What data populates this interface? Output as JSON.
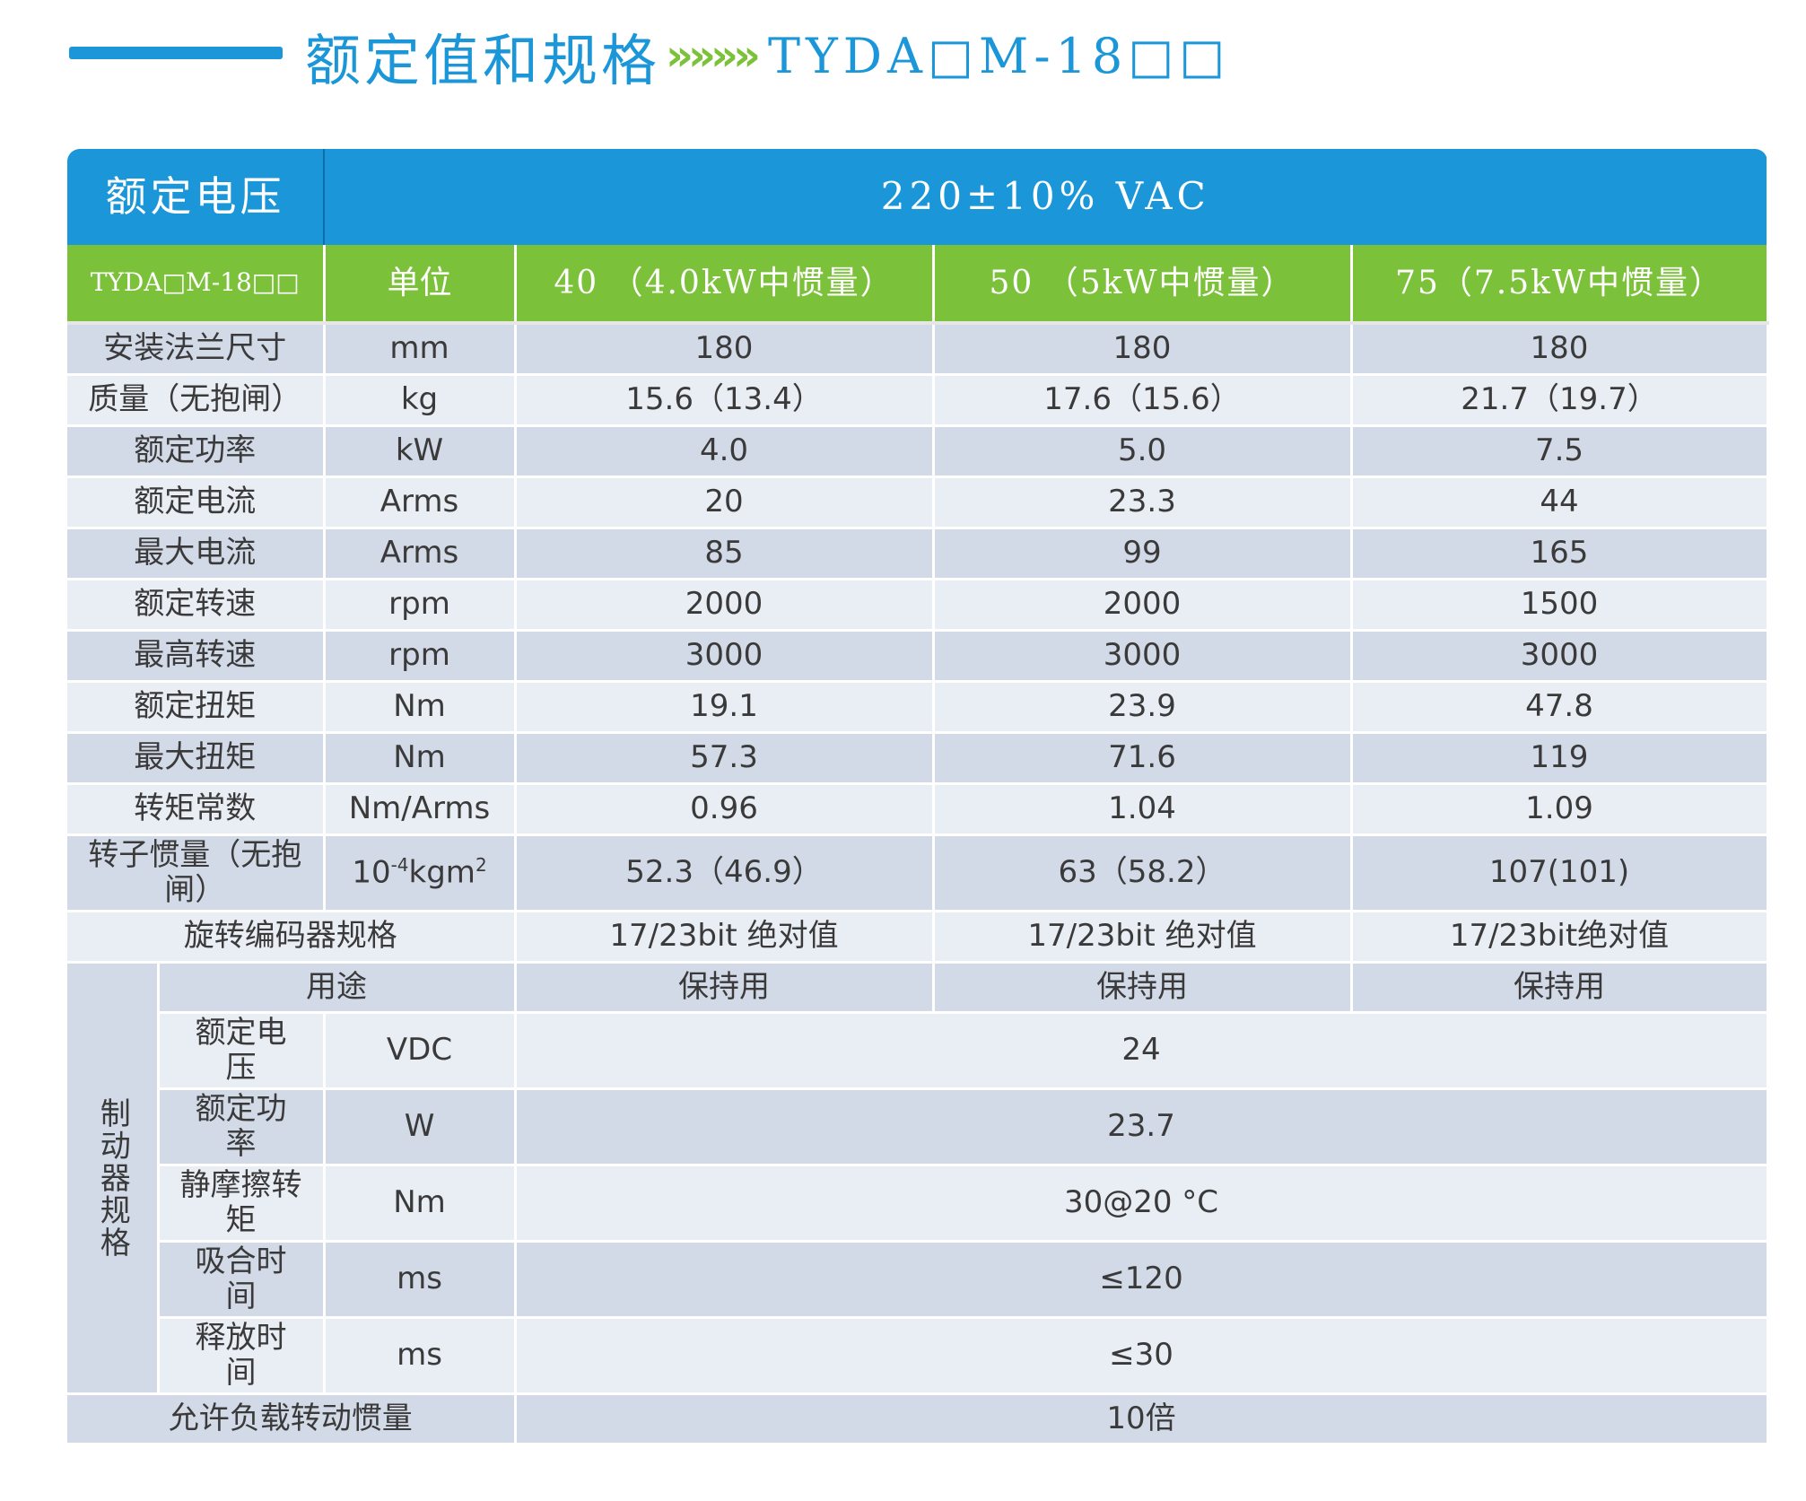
{
  "header": {
    "title_cn": "额定值和规格",
    "arrows": "»»»»",
    "model": "TYDA□M-18□□"
  },
  "voltage": {
    "label": "额定电压",
    "value": "220±10% VAC"
  },
  "model_row": {
    "model": "TYDA□M-18□□",
    "unit": "单位",
    "col1": "40 （4.0kW中惯量）",
    "col2": "50 （5kW中惯量）",
    "col3": "75（7.5kW中惯量）"
  },
  "rows": [
    {
      "label": "安装法兰尺寸",
      "unit": "mm",
      "v1": "180",
      "v2": "180",
      "v3": "180"
    },
    {
      "label": "质量（无抱闸）",
      "unit": "kg",
      "v1": "15.6（13.4）",
      "v2": "17.6（15.6）",
      "v3": "21.7（19.7）"
    },
    {
      "label": "额定功率",
      "unit": "kW",
      "v1": "4.0",
      "v2": "5.0",
      "v3": "7.5"
    },
    {
      "label": "额定电流",
      "unit": "Arms",
      "v1": "20",
      "v2": "23.3",
      "v3": "44"
    },
    {
      "label": "最大电流",
      "unit": "Arms",
      "v1": "85",
      "v2": "99",
      "v3": "165"
    },
    {
      "label": "额定转速",
      "unit": "rpm",
      "v1": "2000",
      "v2": "2000",
      "v3": "1500"
    },
    {
      "label": "最高转速",
      "unit": "rpm",
      "v1": "3000",
      "v2": "3000",
      "v3": "3000"
    },
    {
      "label": "额定扭矩",
      "unit": "Nm",
      "v1": "19.1",
      "v2": "23.9",
      "v3": "47.8"
    },
    {
      "label": "最大扭矩",
      "unit": "Nm",
      "v1": "57.3",
      "v2": "71.6",
      "v3": "119"
    },
    {
      "label": "转矩常数",
      "unit": "Nm/Arms",
      "v1": "0.96",
      "v2": "1.04",
      "v3": "1.09"
    }
  ],
  "inertia": {
    "label": "转子惯量（无抱闸）",
    "unit_base": "10",
    "unit_exp": "-4",
    "unit_mid": "kgm",
    "unit_exp2": "2",
    "v1": "52.3（46.9）",
    "v2": "63（58.2）",
    "v3": "107(101)"
  },
  "encoder": {
    "label": "旋转编码器规格",
    "v1": "17/23bit 绝对值",
    "v2": "17/23bit 绝对值",
    "v3": "17/23bit绝对值"
  },
  "brake": {
    "label": "制动器规格",
    "use": {
      "label": "用途",
      "v1": "保持用",
      "v2": "保持用",
      "v3": "保持用"
    },
    "items": [
      {
        "label": "额定电压",
        "unit": "VDC",
        "value": "24"
      },
      {
        "label": "额定功率",
        "unit": "W",
        "value": "23.7"
      },
      {
        "label": "静摩擦转矩",
        "unit": "Nm",
        "value": "30@20 °C"
      },
      {
        "label": "吸合时间",
        "unit": "ms",
        "value": "≤120"
      },
      {
        "label": "释放时间",
        "unit": "ms",
        "value": "≤30"
      }
    ]
  },
  "load_inertia": {
    "label": "允许负载转动惯量",
    "value": "10倍"
  },
  "colors": {
    "blue": "#1a96d9",
    "green": "#7cc13a",
    "row_dark": "#d2d9e7",
    "row_light": "#e9edf4"
  }
}
